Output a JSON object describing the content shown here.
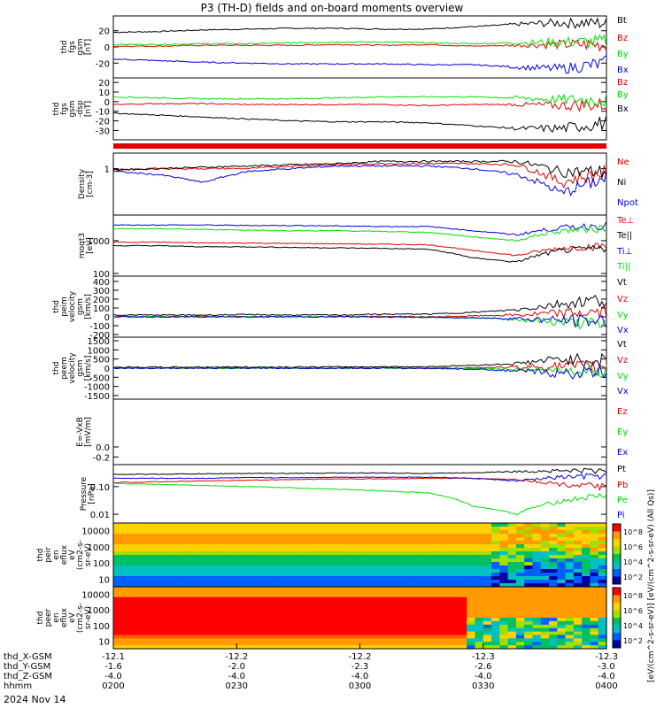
{
  "title": "P3 (TH-D) fields and on-board moments overview",
  "date": "2024 Nov 14",
  "colors": {
    "black": "#000000",
    "red": "#e00000",
    "green": "#00e000",
    "blue": "#0000e0"
  },
  "chart_data": [
    {
      "type": "line",
      "ylabel": [
        "thd",
        "fgs",
        "gsm",
        "[nT]"
      ],
      "yticks": [
        "20",
        "0",
        "-20"
      ],
      "legend": [
        "Bt",
        "Bz",
        "By",
        "Bx"
      ],
      "series": [
        {
          "name": "Bt",
          "color": "black",
          "values": [
            18,
            19,
            21,
            22,
            23,
            23,
            22,
            22,
            25,
            28,
            30,
            30
          ]
        },
        {
          "name": "Bz",
          "color": "red",
          "values": [
            1,
            1,
            2,
            2,
            2,
            3,
            2,
            3,
            1,
            2,
            3,
            3
          ]
        },
        {
          "name": "By",
          "color": "green",
          "values": [
            3,
            3,
            4,
            4,
            5,
            6,
            6,
            5,
            4,
            5,
            6,
            6
          ]
        },
        {
          "name": "Bx",
          "color": "blue",
          "values": [
            -15,
            -17,
            -19,
            -20,
            -21,
            -21,
            -21,
            -22,
            -22,
            -25,
            -27,
            -20
          ]
        }
      ]
    },
    {
      "type": "line",
      "ylabel": [
        "thd",
        "fgs",
        "gsm",
        "-dsp",
        "[nT]"
      ],
      "yticks": [
        "20",
        "10",
        "0",
        "-10",
        "-20",
        "-30"
      ],
      "legend": [
        "Bz",
        "By",
        "Bx"
      ],
      "series": [
        {
          "name": "Bz",
          "color": "red",
          "values": [
            -3,
            -2,
            -2,
            -3,
            -3,
            -3,
            -3,
            -4,
            -3,
            -3,
            -4,
            -3
          ]
        },
        {
          "name": "By",
          "color": "green",
          "values": [
            5,
            4,
            3,
            3,
            3,
            4,
            5,
            5,
            5,
            4,
            2,
            2
          ]
        },
        {
          "name": "Bx",
          "color": "black",
          "values": [
            -12,
            -14,
            -16,
            -18,
            -20,
            -21,
            -21,
            -22,
            -25,
            -28,
            -28,
            -22
          ]
        }
      ]
    },
    {
      "type": "line",
      "ylabel": [
        "Density",
        "[cm-3]"
      ],
      "yticks": [
        "1"
      ],
      "legend": [
        "Ne",
        "Ni",
        "Npot"
      ],
      "series": [
        {
          "name": "Ne",
          "color": "red",
          "values": [
            0.95,
            1.0,
            1.0,
            1.0,
            1.1,
            1.15,
            1.2,
            1.2,
            1.2,
            1.15,
            0.6,
            0.9
          ]
        },
        {
          "name": "Ni",
          "color": "black",
          "values": [
            0.95,
            1.0,
            1.05,
            1.1,
            1.15,
            1.2,
            1.3,
            1.3,
            1.3,
            1.3,
            0.9,
            0.9
          ]
        },
        {
          "name": "Npot",
          "color": "blue",
          "values": [
            0.9,
            0.8,
            0.6,
            0.9,
            1.0,
            1.1,
            1.1,
            1.1,
            1.0,
            0.8,
            0.4,
            0.7
          ]
        }
      ]
    },
    {
      "type": "line",
      "ylabel": [
        "moqt3",
        "[eV]"
      ],
      "yticks": [
        "1000",
        "100"
      ],
      "legend": [
        "Te⊥",
        "Te||",
        "Ti⊥",
        "Ti||"
      ],
      "series": [
        {
          "name": "Te⊥",
          "color": "red",
          "values": [
            900,
            900,
            850,
            850,
            820,
            800,
            780,
            750,
            500,
            350,
            600,
            700
          ]
        },
        {
          "name": "Te||",
          "color": "black",
          "values": [
            700,
            700,
            650,
            650,
            620,
            600,
            580,
            550,
            300,
            220,
            500,
            600
          ]
        },
        {
          "name": "Ti⊥",
          "color": "blue",
          "values": [
            3000,
            3000,
            3000,
            2900,
            2900,
            2800,
            2700,
            2700,
            2000,
            1500,
            2500,
            3000
          ]
        },
        {
          "name": "Ti||",
          "color": "green",
          "values": [
            2300,
            2300,
            2200,
            2100,
            2000,
            2000,
            1900,
            1800,
            1300,
            1000,
            2000,
            2500
          ]
        }
      ]
    },
    {
      "type": "line",
      "ylabel": [
        "thd",
        "peim",
        "velocity",
        "gsm",
        "[km/s]"
      ],
      "yticks": [
        "400",
        "300",
        "200",
        "100",
        "0",
        "-100",
        "-200"
      ],
      "legend": [
        "Vt",
        "Vz",
        "Vy",
        "Vx"
      ],
      "series": [
        {
          "name": "Vt",
          "color": "black",
          "values": [
            20,
            20,
            20,
            25,
            20,
            20,
            30,
            30,
            50,
            80,
            150,
            200
          ]
        },
        {
          "name": "Vz",
          "color": "red",
          "values": [
            0,
            0,
            5,
            0,
            0,
            5,
            5,
            0,
            10,
            20,
            40,
            50
          ]
        },
        {
          "name": "Vy",
          "color": "green",
          "values": [
            0,
            5,
            0,
            0,
            5,
            0,
            0,
            -5,
            -10,
            -30,
            -60,
            -90
          ]
        },
        {
          "name": "Vx",
          "color": "blue",
          "values": [
            0,
            0,
            0,
            0,
            0,
            0,
            0,
            -5,
            -10,
            -20,
            -40,
            -50
          ]
        }
      ]
    },
    {
      "type": "line",
      "ylabel": [
        "thd",
        "peem",
        "velocity",
        "gsm",
        "[km/s]"
      ],
      "yticks": [
        "1500",
        "1000",
        "500",
        "0",
        "-500",
        "-1000",
        "-1500"
      ],
      "legend": [
        "Vt",
        "Vz",
        "Vy",
        "Vx"
      ],
      "series": [
        {
          "name": "Vt",
          "color": "black",
          "values": [
            50,
            50,
            60,
            60,
            60,
            70,
            80,
            80,
            150,
            250,
            500,
            400
          ]
        },
        {
          "name": "Vz",
          "color": "red",
          "values": [
            0,
            10,
            0,
            10,
            0,
            0,
            10,
            0,
            20,
            50,
            100,
            50
          ]
        },
        {
          "name": "Vy",
          "color": "green",
          "values": [
            0,
            0,
            -10,
            0,
            0,
            -10,
            0,
            0,
            -20,
            -50,
            -150,
            -100
          ]
        },
        {
          "name": "Vx",
          "color": "blue",
          "values": [
            0,
            0,
            0,
            0,
            0,
            0,
            0,
            -10,
            -50,
            -150,
            -300,
            -200
          ]
        }
      ]
    },
    {
      "type": "line",
      "ylabel": [
        "E=-VxB",
        "[mV/m]"
      ],
      "yticks": [
        "0.0",
        "-0.2"
      ],
      "legend": [
        "Ez",
        "Ey",
        "Ex"
      ],
      "series": []
    },
    {
      "type": "line",
      "ylabel": [
        "Pressure",
        "[nPa]"
      ],
      "yticks": [
        "0.10",
        "0.01"
      ],
      "legend": [
        "Pt",
        "Pb",
        "Pe",
        "Pi"
      ],
      "series": [
        {
          "name": "Pt",
          "color": "black",
          "values": [
            0.28,
            0.28,
            0.29,
            0.3,
            0.3,
            0.31,
            0.31,
            0.3,
            0.32,
            0.35,
            0.38,
            0.38
          ]
        },
        {
          "name": "Pb",
          "color": "red",
          "values": [
            0.14,
            0.15,
            0.16,
            0.17,
            0.18,
            0.19,
            0.19,
            0.2,
            0.2,
            0.18,
            0.12,
            0.1
          ]
        },
        {
          "name": "Pe",
          "color": "green",
          "values": [
            0.13,
            0.12,
            0.11,
            0.1,
            0.09,
            0.08,
            0.07,
            0.06,
            0.02,
            0.01,
            0.03,
            0.05
          ]
        },
        {
          "name": "Pi",
          "color": "blue",
          "values": [
            0.2,
            0.2,
            0.2,
            0.21,
            0.21,
            0.22,
            0.22,
            0.22,
            0.2,
            0.16,
            0.22,
            0.25
          ]
        }
      ]
    },
    {
      "type": "heatmap",
      "ylabel": [
        "thd",
        "peir",
        "en",
        "eflux",
        "eV",
        "(cm2-s-",
        "sr-eV)"
      ],
      "yticks": [
        "10000",
        "1000",
        "100",
        "10"
      ]
    },
    {
      "type": "heatmap",
      "ylabel": [
        "thd",
        "peer",
        "en",
        "eflux",
        "eV",
        "(cm2-s-",
        "sr-eV)"
      ],
      "yticks": [
        "10000",
        "1000",
        "100",
        "10"
      ]
    }
  ],
  "colorbar": {
    "label": "[eV/(cm^2-s-sr-eV)]   [eV/(cm^2-s-sr-eV) (All Qs)]",
    "ticks_top": [
      "10^8",
      "10^6",
      "10^4",
      "10^2"
    ],
    "ticks_bottom": [
      "10^8",
      "10^6",
      "10^4",
      "10^2"
    ]
  },
  "x_axis": {
    "rows": [
      {
        "label": "thd_X-GSM",
        "values": [
          "-12.1",
          "-12.2",
          "-12.2",
          "-12.3",
          "-12.3"
        ]
      },
      {
        "label": "thd_Y-GSM",
        "values": [
          "-1.6",
          "-2.0",
          "-2.3",
          "-2.6",
          "-3.0"
        ]
      },
      {
        "label": "thd_Z-GSM",
        "values": [
          "-4.0",
          "-4.0",
          "-4.0",
          "-4.0",
          "-4.0"
        ]
      },
      {
        "label": "hhmm",
        "values": [
          "0200",
          "0230",
          "0300",
          "0330",
          "0400"
        ]
      }
    ]
  }
}
